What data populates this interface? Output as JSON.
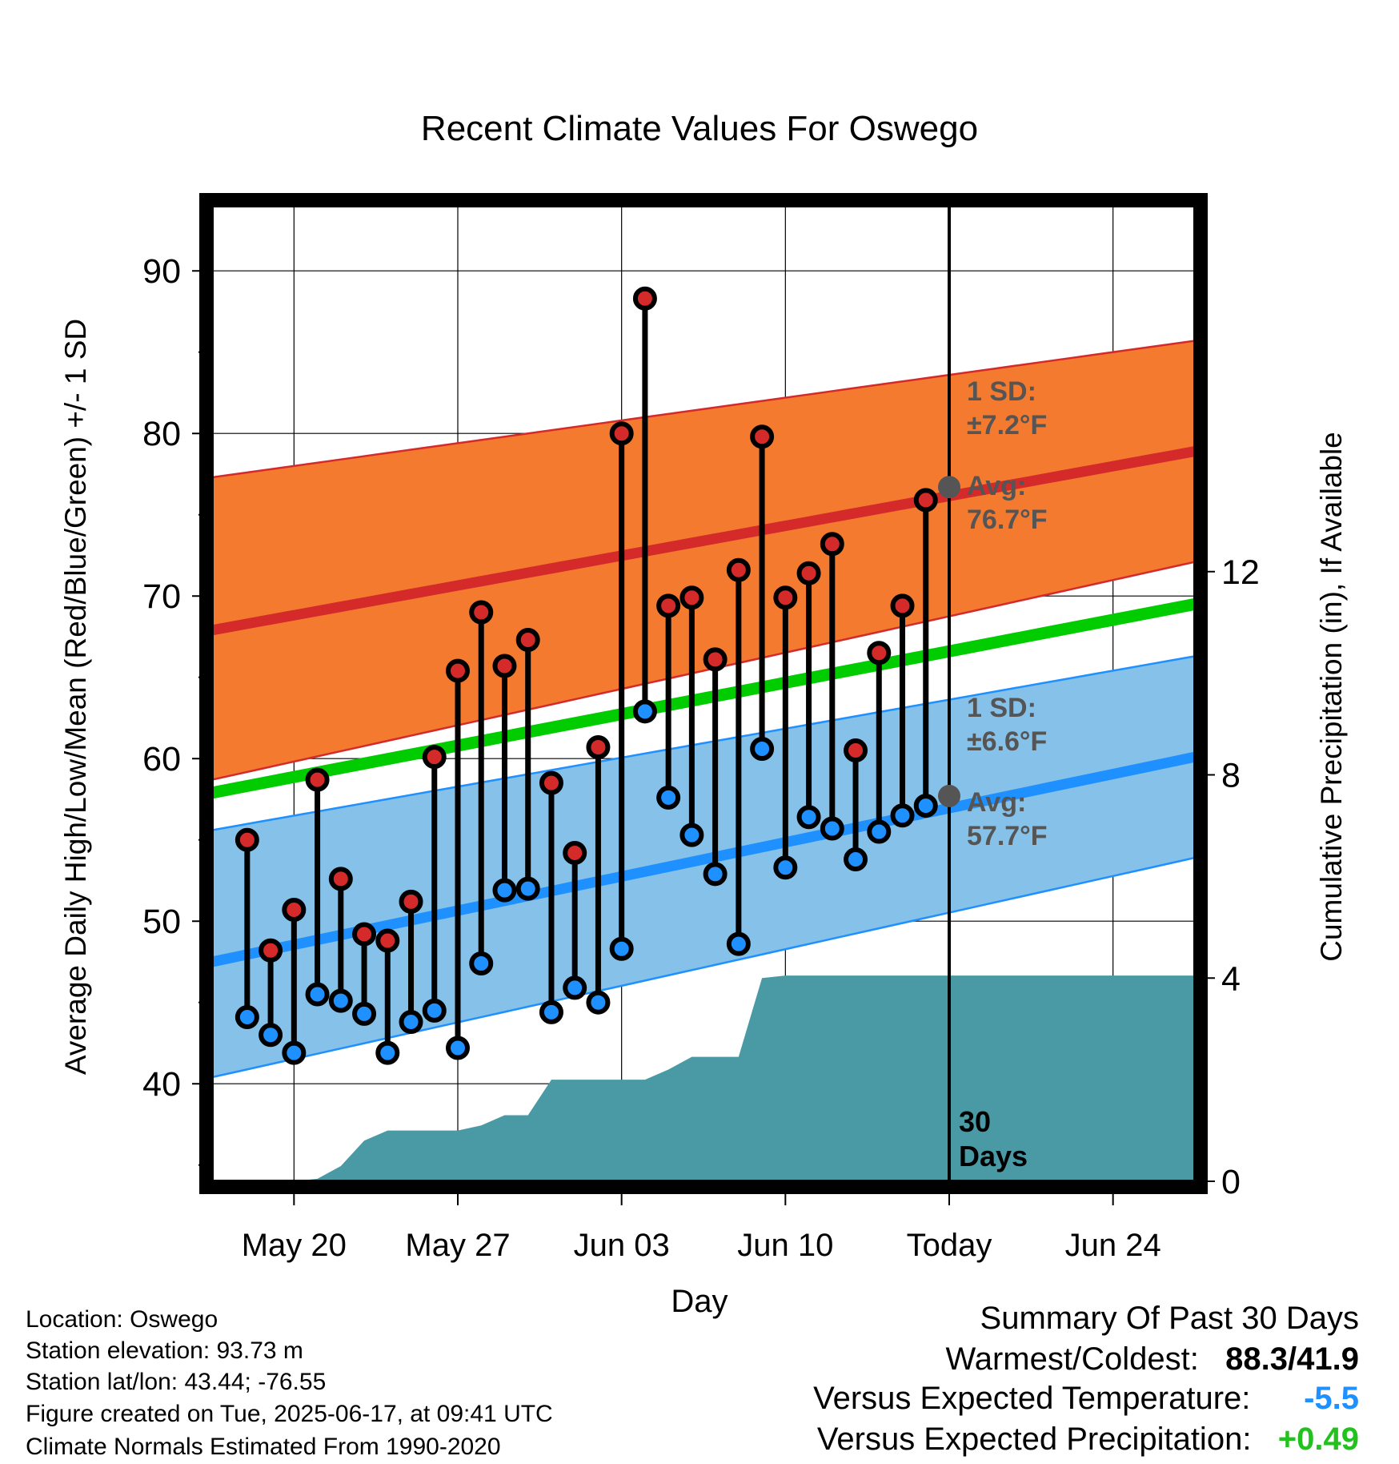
{
  "chart_data": {
    "type": "line",
    "title": "Recent Climate Values For Oswego",
    "xlabel": "Day",
    "ylabel_left": "Average Daily High/Low/Mean (Red/Blue/Green) +/- 1 SD",
    "ylabel_right": "Cumulative Precipitation (in), If Available",
    "ylim": [
      34,
      94
    ],
    "y_ticks": [
      40,
      50,
      60,
      70,
      80,
      90
    ],
    "y2lim": [
      0,
      19.2
    ],
    "y2_ticks": [
      0,
      4,
      8,
      12
    ],
    "xlim": [
      -1.5,
      40.5
    ],
    "x_ticks": [
      {
        "day": 2,
        "label": "May 20"
      },
      {
        "day": 9,
        "label": "May 27"
      },
      {
        "day": 16,
        "label": "Jun 03"
      },
      {
        "day": 23,
        "label": "Jun 10"
      },
      {
        "day": 30,
        "label": "Today"
      },
      {
        "day": 37,
        "label": "Jun 24"
      }
    ],
    "days": [
      "May 18",
      "May 19",
      "May 20",
      "May 21",
      "May 22",
      "May 23",
      "May 24",
      "May 25",
      "May 26",
      "May 27",
      "May 28",
      "May 29",
      "May 30",
      "May 31",
      "Jun 01",
      "Jun 02",
      "Jun 03",
      "Jun 04",
      "Jun 05",
      "Jun 06",
      "Jun 07",
      "Jun 08",
      "Jun 09",
      "Jun 10",
      "Jun 11",
      "Jun 12",
      "Jun 13",
      "Jun 14",
      "Jun 15",
      "Jun 16"
    ],
    "daily_high": [
      55.0,
      48.2,
      50.7,
      58.7,
      52.6,
      49.2,
      48.8,
      51.2,
      60.1,
      65.4,
      69.0,
      65.7,
      67.3,
      58.5,
      54.2,
      60.7,
      80.0,
      88.3,
      69.4,
      69.9,
      66.1,
      71.6,
      79.8,
      69.9,
      71.4,
      73.2,
      60.5,
      66.5,
      69.4,
      75.9
    ],
    "daily_low": [
      44.1,
      43.0,
      41.9,
      45.5,
      45.1,
      44.3,
      41.9,
      43.8,
      44.5,
      42.2,
      47.4,
      51.9,
      52.0,
      44.4,
      45.9,
      45.0,
      48.3,
      62.9,
      57.6,
      55.3,
      52.9,
      48.6,
      60.6,
      53.3,
      56.4,
      55.7,
      53.8,
      55.5,
      56.5,
      57.1
    ],
    "normals": {
      "series": [
        {
          "name": "Avg High",
          "color": "#d42a2a",
          "start": 67.9,
          "end": 78.9
        },
        {
          "name": "High +1 SD",
          "color": "#d42a2a",
          "start": 77.3,
          "end": 85.7
        },
        {
          "name": "High -1 SD",
          "color": "#d42a2a",
          "start": 58.7,
          "end": 72.1
        },
        {
          "name": "Mean",
          "color": "#00cc00",
          "start": 57.9,
          "end": 69.5
        },
        {
          "name": "Avg Low",
          "color": "#1e90ff",
          "start": 47.5,
          "end": 60.1
        },
        {
          "name": "Low +1 SD",
          "color": "#1e90ff",
          "start": 55.6,
          "end": 66.3
        },
        {
          "name": "Low -1 SD",
          "color": "#1e90ff",
          "start": 40.4,
          "end": 53.9
        }
      ],
      "band_high_color": "#f47a30",
      "band_low_color": "#85c1e9"
    },
    "precip_cumulative": {
      "color": "#4a9aa5",
      "days": [
        -1.5,
        1,
        2,
        3,
        4,
        5,
        6,
        7,
        8,
        9,
        10,
        11,
        12,
        13,
        14,
        15,
        16,
        17,
        18,
        19,
        20,
        21,
        22,
        23,
        40.5
      ],
      "values": [
        0,
        0,
        0,
        0.05,
        0.3,
        0.8,
        1.0,
        1.0,
        1.0,
        1.0,
        1.1,
        1.3,
        1.3,
        2.0,
        2.0,
        2.0,
        2.0,
        2.0,
        2.2,
        2.45,
        2.45,
        2.45,
        4.0,
        4.05,
        4.05
      ]
    },
    "today_day": 30,
    "annotations": {
      "high_sd": "1 SD:",
      "high_sd_val": "±7.2°F",
      "high_avg": "Avg:",
      "high_avg_val": "76.7°F",
      "high_avg_value": 76.7,
      "low_sd": "1 SD:",
      "low_sd_val": "±6.6°F",
      "low_avg": "Avg:",
      "low_avg_val": "57.7°F",
      "low_avg_value": 57.7,
      "days_line1": "30",
      "days_line2": "Days"
    },
    "grid": true
  },
  "info": {
    "location": "Location: Oswego",
    "elevation": "Station elevation: 93.73 m",
    "latlon": "Station lat/lon: 43.44; -76.55",
    "created": "Figure created on Tue, 2025-06-17, at 09:41 UTC",
    "normals": "Climate Normals Estimated From 1990-2020"
  },
  "summary": {
    "title": "Summary Of Past 30 Days",
    "warm_label": "Warmest/Coldest:",
    "warm_value": "88.3/41.9",
    "temp_label": "Versus Expected Temperature:",
    "temp_value": "-5.5",
    "precip_label": "Versus Expected Precipitation:",
    "precip_value": "+0.49"
  }
}
